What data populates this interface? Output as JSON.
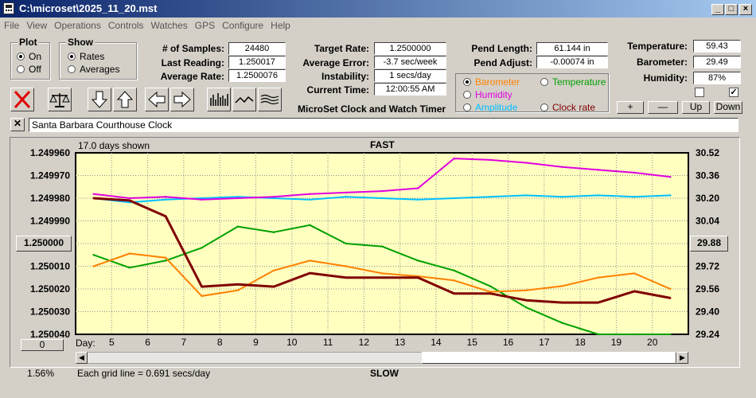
{
  "window": {
    "title": "C:\\microset\\2025_11_20.mst"
  },
  "menu": [
    "File",
    "View",
    "Operations",
    "Controls",
    "Watches",
    "GPS",
    "Configure",
    "Help"
  ],
  "plot_group": {
    "title": "Plot",
    "options": [
      "On",
      "Off"
    ],
    "selected": "On"
  },
  "show_group": {
    "title": "Show",
    "options": [
      "Rates",
      "Averages"
    ],
    "selected": "Rates"
  },
  "stats": {
    "samples_label": "# of Samples:",
    "samples": "24480",
    "last_reading_label": "Last Reading:",
    "last_reading": "1.250017",
    "average_rate_label": "Average Rate:",
    "average_rate": "1.2500076",
    "target_rate_label": "Target Rate:",
    "target_rate": "1.2500000",
    "average_error_label": "Average Error:",
    "average_error": "-3.7 sec/week",
    "instability_label": "Instability:",
    "instability": "1 secs/day",
    "current_time_label": "Current Time:",
    "current_time": "12:00:55 AM",
    "pend_length_label": "Pend Length:",
    "pend_length": "61.144 in",
    "pend_adjust_label": "Pend Adjust:",
    "pend_adjust": "-0.00074 in",
    "temperature_label": "Temperature:",
    "temperature": "59.43",
    "barometer_label": "Barometer:",
    "barometer": "29.49",
    "humidity_label": "Humidity:",
    "humidity": "87%"
  },
  "app_title": "MicroSet Clock and Watch Timer",
  "series_select": {
    "options": [
      {
        "label": "Barometer",
        "color": "#ff8000"
      },
      {
        "label": "Temperature",
        "color": "#00a000"
      },
      {
        "label": "Humidity",
        "color": "#e000e0"
      },
      {
        "label": "Amplitude",
        "color": "#00c0ff"
      },
      {
        "label": "Clock rate",
        "color": "#800000"
      }
    ],
    "selected": "Barometer"
  },
  "side_buttons": {
    "plus": "+",
    "minus": "—",
    "up": "Up",
    "down": "Down"
  },
  "checkboxes": [
    false,
    true
  ],
  "description": "Santa Barbara Courthouse Clock",
  "plot": {
    "days_shown": "17.0 days shown",
    "fast_label": "FAST",
    "slow_label": "SLOW",
    "day_label": "Day:",
    "grid_note": "Each grid line = 0.691 secs/day",
    "percent": "1.56%",
    "center_left": "1.250000",
    "center_right": "29.88",
    "zero_button": "0"
  },
  "chart_data": {
    "type": "line",
    "title": "",
    "x": [
      4.5,
      5.5,
      6.5,
      7.5,
      8.5,
      9.5,
      10.5,
      11.5,
      12.5,
      13.5,
      14.5,
      15.5,
      16.5,
      17.5,
      18.5,
      19.5,
      20.5
    ],
    "x_ticks": [
      5,
      6,
      7,
      8,
      9,
      10,
      11,
      12,
      13,
      14,
      15,
      16,
      17,
      18,
      19,
      20
    ],
    "xlim": [
      4.0,
      21.0
    ],
    "y_left_ticks": [
      "1.249960",
      "1.249970",
      "1.249980",
      "1.249990",
      "1.250000",
      "1.250010",
      "1.250020",
      "1.250030",
      "1.250040"
    ],
    "ylim_left": [
      1.24996,
      1.25004
    ],
    "y_left_inverted": true,
    "y_right_ticks": [
      "30.52",
      "30.36",
      "30.20",
      "30.04",
      "29.88",
      "29.72",
      "29.56",
      "29.40",
      "29.24"
    ],
    "ylim_right": [
      29.24,
      30.52
    ],
    "grid": true,
    "series": [
      {
        "name": "Clock rate",
        "axis": "left",
        "color": "#800000",
        "values": [
          1.24998,
          1.249981,
          1.249988,
          1.250019,
          1.250018,
          1.250019,
          1.250013,
          1.250015,
          1.250015,
          1.250015,
          1.250022,
          1.250022,
          1.250025,
          1.250026,
          1.250026,
          1.250021,
          1.250024
        ]
      },
      {
        "name": "Barometer",
        "axis": "right",
        "color": "#ff8000",
        "values": [
          29.72,
          29.81,
          29.78,
          29.51,
          29.55,
          29.69,
          29.76,
          29.72,
          29.67,
          29.65,
          29.62,
          29.54,
          29.55,
          29.58,
          29.64,
          29.67,
          29.56
        ]
      },
      {
        "name": "Temperature",
        "axis": "right",
        "color": "#00a000",
        "values": [
          29.8,
          29.71,
          29.76,
          29.85,
          30.0,
          29.96,
          30.01,
          29.88,
          29.86,
          29.76,
          29.69,
          29.58,
          29.43,
          29.32,
          29.24,
          29.24,
          29.24
        ]
      },
      {
        "name": "Humidity",
        "axis": "right",
        "color": "#e000e0",
        "values": [
          30.23,
          30.2,
          30.21,
          30.19,
          30.2,
          30.21,
          30.23,
          30.24,
          30.25,
          30.27,
          30.48,
          30.47,
          30.45,
          30.42,
          30.4,
          30.38,
          30.35
        ]
      },
      {
        "name": "Amplitude",
        "axis": "right",
        "color": "#00c0ff",
        "values": [
          30.2,
          30.17,
          30.19,
          30.2,
          30.21,
          30.2,
          30.19,
          30.21,
          30.2,
          30.19,
          30.2,
          30.21,
          30.22,
          30.21,
          30.22,
          30.21,
          30.22
        ]
      }
    ]
  }
}
